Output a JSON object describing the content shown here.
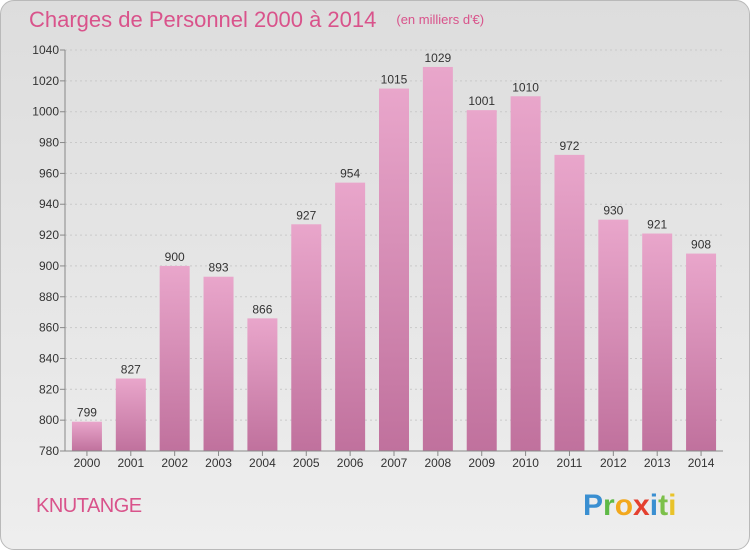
{
  "title": "Charges de Personnel 2000 à 2014",
  "subtitle": "(en milliers d'€)",
  "commune": "KNUTANGE",
  "logo": {
    "letters": [
      "P",
      "r",
      "o",
      "x",
      "i",
      "t",
      "i"
    ]
  },
  "colors": {
    "title": "#d9538b",
    "bar_top": "#e9a6cb",
    "bar_bottom": "#c0719d",
    "background": "#e6e6e6"
  },
  "chart_data": {
    "type": "bar",
    "title": "Charges de Personnel 2000 à 2014",
    "subtitle": "(en milliers d'€)",
    "xlabel": "",
    "ylabel": "",
    "categories": [
      "2000",
      "2001",
      "2002",
      "2003",
      "2004",
      "2005",
      "2006",
      "2007",
      "2008",
      "2009",
      "2010",
      "2011",
      "2012",
      "2013",
      "2014"
    ],
    "values": [
      799,
      827,
      900,
      893,
      866,
      927,
      954,
      1015,
      1029,
      1001,
      1010,
      972,
      930,
      921,
      908
    ],
    "ylim": [
      780,
      1040
    ],
    "yticks": [
      780,
      800,
      820,
      840,
      860,
      880,
      900,
      920,
      940,
      960,
      980,
      1000,
      1020,
      1040
    ],
    "grid": true,
    "legend": "none"
  }
}
